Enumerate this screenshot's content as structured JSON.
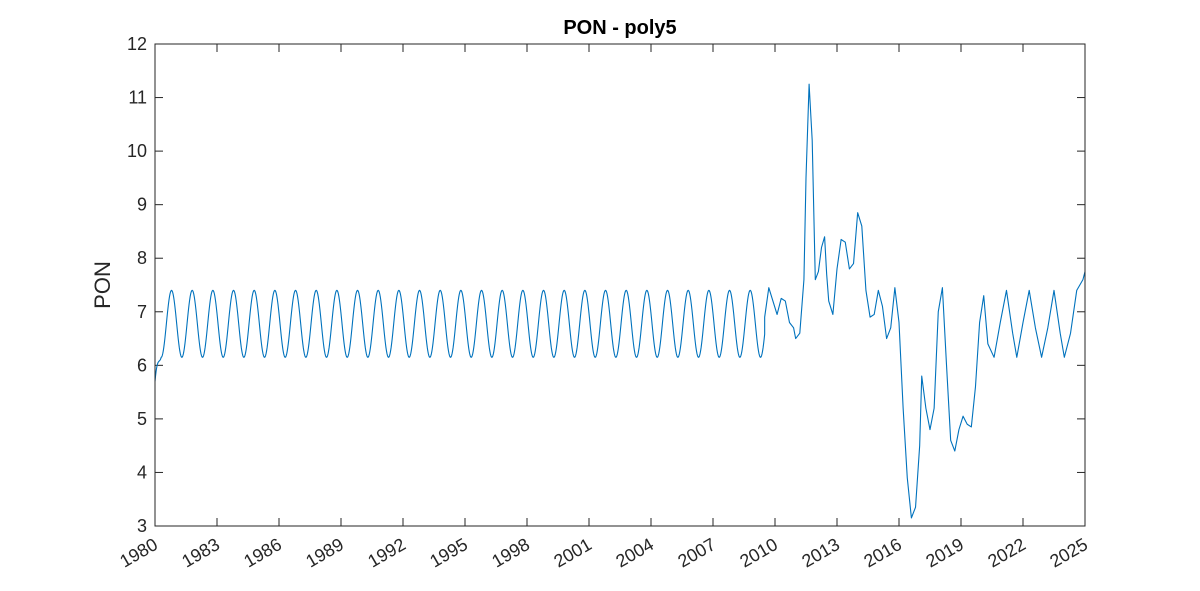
{
  "chart_data": {
    "type": "line",
    "title": "PON - poly5",
    "xlabel": "",
    "ylabel": "PON",
    "xlim": [
      1980,
      2025
    ],
    "ylim": [
      3,
      12
    ],
    "xticks": [
      1980,
      1983,
      1986,
      1989,
      1992,
      1995,
      1998,
      2001,
      2004,
      2007,
      2010,
      2013,
      2016,
      2019,
      2022,
      2025
    ],
    "yticks": [
      3,
      4,
      5,
      6,
      7,
      8,
      9,
      10,
      11,
      12
    ],
    "grid": false,
    "legend": "none",
    "line_color": "#0072BD",
    "seasonal_pattern": {
      "start_year": 1980.0,
      "end_year": 2009.5,
      "period_years": 1.0,
      "min": 6.15,
      "max": 7.4,
      "start_value": 5.7
    },
    "series": [
      {
        "x": [
          2009.5,
          2009.7,
          2009.9,
          2010.1,
          2010.3,
          2010.5,
          2010.7,
          2010.9,
          2011.0,
          2011.2,
          2011.4,
          2011.5,
          2011.65,
          2011.8,
          2011.95,
          2012.1,
          2012.25,
          2012.4,
          2012.5,
          2012.6,
          2012.8,
          2013.0,
          2013.2,
          2013.4,
          2013.6,
          2013.8,
          2014.0,
          2014.2,
          2014.4,
          2014.6,
          2014.8,
          2015.0,
          2015.2,
          2015.4,
          2015.6,
          2015.8,
          2016.0,
          2016.2,
          2016.4,
          2016.6,
          2016.8,
          2017.0,
          2017.1,
          2017.3,
          2017.5,
          2017.7,
          2017.9,
          2018.1,
          2018.3,
          2018.5,
          2018.7,
          2018.9,
          2019.1,
          2019.3,
          2019.5,
          2019.7,
          2019.9,
          2020.1,
          2020.3,
          2020.6,
          2020.9,
          2021.2,
          2021.5,
          2021.7,
          2022.0,
          2022.3,
          2022.6,
          2022.9,
          2023.2,
          2023.5,
          2023.8,
          2024.0,
          2024.3,
          2024.6,
          2024.9,
          2025.0
        ],
        "y": [
          6.9,
          7.45,
          7.2,
          6.95,
          7.25,
          7.2,
          6.8,
          6.7,
          6.5,
          6.6,
          7.6,
          9.5,
          11.25,
          10.2,
          7.6,
          7.75,
          8.2,
          8.4,
          7.7,
          7.2,
          6.95,
          7.8,
          8.35,
          8.3,
          7.8,
          7.9,
          8.85,
          8.6,
          7.4,
          6.9,
          6.95,
          7.4,
          7.1,
          6.5,
          6.7,
          7.45,
          6.8,
          5.2,
          3.9,
          3.15,
          3.35,
          4.5,
          5.8,
          5.2,
          4.8,
          5.2,
          7.0,
          7.45,
          6.0,
          4.6,
          4.4,
          4.8,
          5.05,
          4.9,
          4.85,
          5.6,
          6.8,
          7.3,
          6.4,
          6.15,
          6.8,
          7.4,
          6.6,
          6.15,
          6.8,
          7.4,
          6.7,
          6.15,
          6.7,
          7.4,
          6.6,
          6.15,
          6.6,
          7.4,
          7.6,
          7.75
        ]
      }
    ]
  }
}
